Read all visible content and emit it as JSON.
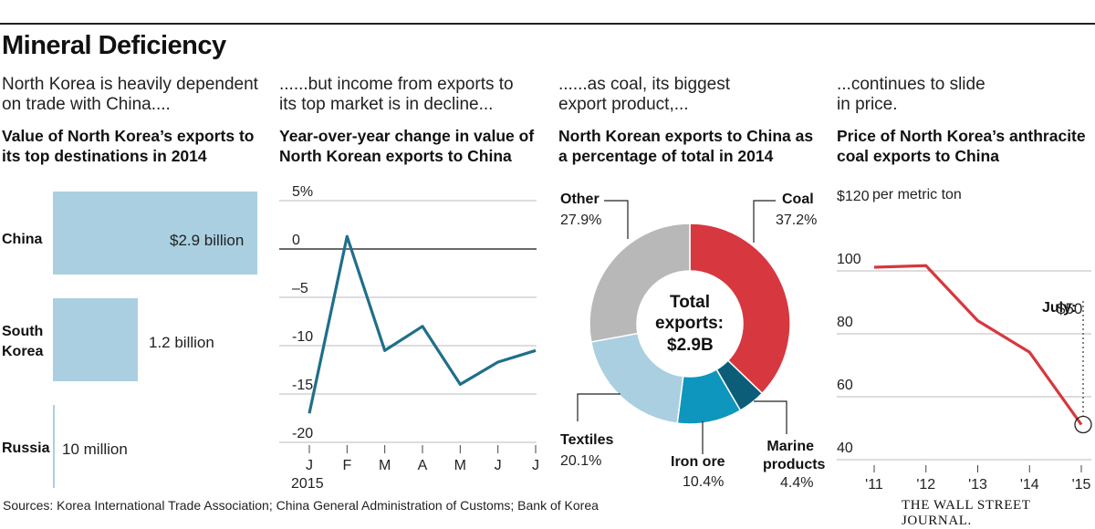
{
  "title": "Mineral Deficiency",
  "panels": [
    {
      "intro": "North Korea is heavily dependent on trade with China....",
      "title": "Value of North Korea’s exports to its top destinations in 2014"
    },
    {
      "intro": "......but income from exports to its top market is in decline...",
      "title": "Year-over-year change in value of North Korean exports to China"
    },
    {
      "intro": "......as coal, its biggest export product,...",
      "title": "North Korean exports to China as a percentage of total in 2014"
    },
    {
      "intro": "...continues to slide in price.",
      "title": "Price of North Korea’s anthracite coal exports to China"
    }
  ],
  "chart_data": [
    {
      "type": "bar",
      "orientation": "horizontal",
      "title": "Value of North Korea’s exports to its top destinations in 2014",
      "categories": [
        "China",
        "South Korea",
        "Russia"
      ],
      "values_billion": [
        2.9,
        1.2,
        0.01
      ],
      "value_labels": [
        "$2.9 billion",
        "1.2 billion",
        "10 million"
      ],
      "colors": {
        "bar": "#a9cfe0"
      }
    },
    {
      "type": "line",
      "title": "Year-over-year change in value of North Korean exports to China",
      "x": [
        "J",
        "F",
        "M",
        "A",
        "M",
        "J",
        "J"
      ],
      "year_label": "2015",
      "y": [
        -17,
        1.3,
        -10.5,
        -8,
        -14,
        -11.7,
        -10.5
      ],
      "ylim": [
        -20,
        5
      ],
      "yticks": [
        5,
        0,
        -5,
        -10,
        -15,
        -20
      ],
      "ytick_labels": [
        "5%",
        "0",
        "–5",
        "-10",
        "-15",
        "-20"
      ],
      "colors": {
        "line": "#1f6f8b"
      }
    },
    {
      "type": "pie",
      "subtype": "donut",
      "title": "North Korean exports to China as a percentage of total in 2014",
      "center_label": [
        "Total",
        "exports:",
        "$2.9B"
      ],
      "slices": [
        {
          "label": "Coal",
          "value": 37.2,
          "value_label": "37.2%",
          "color": "#d7373f"
        },
        {
          "label": "Marine products",
          "value": 4.4,
          "value_label": "4.4%",
          "color": "#0c5e78"
        },
        {
          "label": "Iron ore",
          "value": 10.4,
          "value_label": "10.4%",
          "color": "#0f96bf"
        },
        {
          "label": "Textiles",
          "value": 20.1,
          "value_label": "20.1%",
          "color": "#a9cfe0"
        },
        {
          "label": "Other",
          "value": 27.9,
          "value_label": "27.9%",
          "color": "#b8b8b8"
        }
      ]
    },
    {
      "type": "line",
      "title": "Price of North Korea’s anthracite coal exports to China",
      "ylabel_unit": "per metric ton",
      "x": [
        "'11",
        "'12",
        "'13",
        "'14",
        "'15"
      ],
      "x_values": [
        2011,
        2012,
        2013,
        2014,
        2015
      ],
      "y": [
        100,
        100.5,
        83,
        73,
        50
      ],
      "ylim": [
        40,
        120
      ],
      "yticks": [
        120,
        100,
        80,
        60,
        40
      ],
      "ytick_labels": [
        "$120",
        "100",
        "80",
        "60",
        "40"
      ],
      "annotation": {
        "label": "July:",
        "value": "$50"
      },
      "colors": {
        "line": "#d7373f"
      }
    }
  ],
  "footer": {
    "sources": "Sources: Korea International Trade Association; China General Administration of Customs; Bank of Korea",
    "brand": "THE WALL STREET JOURNAL."
  }
}
